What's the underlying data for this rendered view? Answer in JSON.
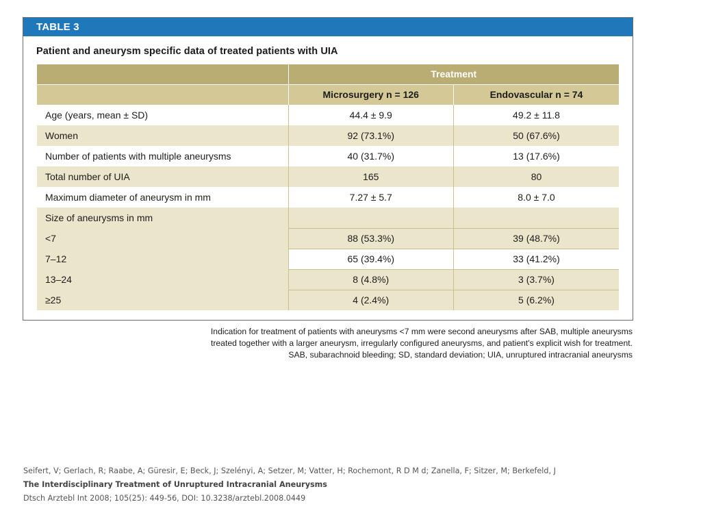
{
  "table": {
    "label": "TABLE 3",
    "caption": "Patient and aneurysm specific data of treated patients with UIA",
    "group_header": "Treatment",
    "columns": [
      "Microsurgery n = 126",
      "Endovascular n = 74"
    ],
    "rows": [
      {
        "label": "Age (years, mean ± SD)",
        "micro": "44.4 ± 9.9",
        "endo": "49.2 ± 11.8"
      },
      {
        "label": "Women",
        "micro": "92 (73.1%)",
        "endo": "50 (67.6%)"
      },
      {
        "label": "Number of patients with multiple aneurysms",
        "micro": "40 (31.7%)",
        "endo": "13 (17.6%)"
      },
      {
        "label": "Total number of UIA",
        "micro": "165",
        "endo": "80"
      },
      {
        "label": "Maximum diameter of aneurysm in mm",
        "micro": "7.27 ± 5.7",
        "endo": "8.0 ± 7.0"
      },
      {
        "label": "Size of aneurysms in mm",
        "micro": "",
        "endo": ""
      },
      {
        "label": "<7",
        "micro": "88 (53.3%)",
        "endo": "39 (48.7%)"
      },
      {
        "label": "7–12",
        "micro": "65 (39.4%)",
        "endo": "33 (41.2%)"
      },
      {
        "label": "13–24",
        "micro": "8 (4.8%)",
        "endo": "3 (3.7%)"
      },
      {
        "label": "≥25",
        "micro": "4 (2.4%)",
        "endo": "5 (6.2%)"
      }
    ],
    "footnote": [
      "Indication for treatment of patients with aneurysms <7 mm were second aneurysms after SAB, multiple aneurysms",
      "treated together with a larger aneurysm, irregularly configured aneurysms, and patient's explicit wish for treatment.",
      "SAB, subarachnoid bleeding; SD, standard deviation; UIA, unruptured intracranial aneurysms"
    ]
  },
  "citation": {
    "authors": "Seifert, V; Gerlach, R; Raabe, A; Güresir, E; Beck, J; Szelényi, A; Setzer, M; Vatter, H; Rochemont, R D M d; Zanella, F; Sitzer, M; Berkefeld, J",
    "title": "The Interdisciplinary Treatment of Unruptured Intracranial Aneurysms",
    "source": "Dtsch Arztebl Int 2008; 105(25): 449-56, DOI: 10.3238/arztebl.2008.0449"
  },
  "colors": {
    "label_bar": "#1f78b9",
    "header_dark": "#b9ad74",
    "header_light": "#d4c996",
    "row_tint": "#ebe5cb"
  }
}
